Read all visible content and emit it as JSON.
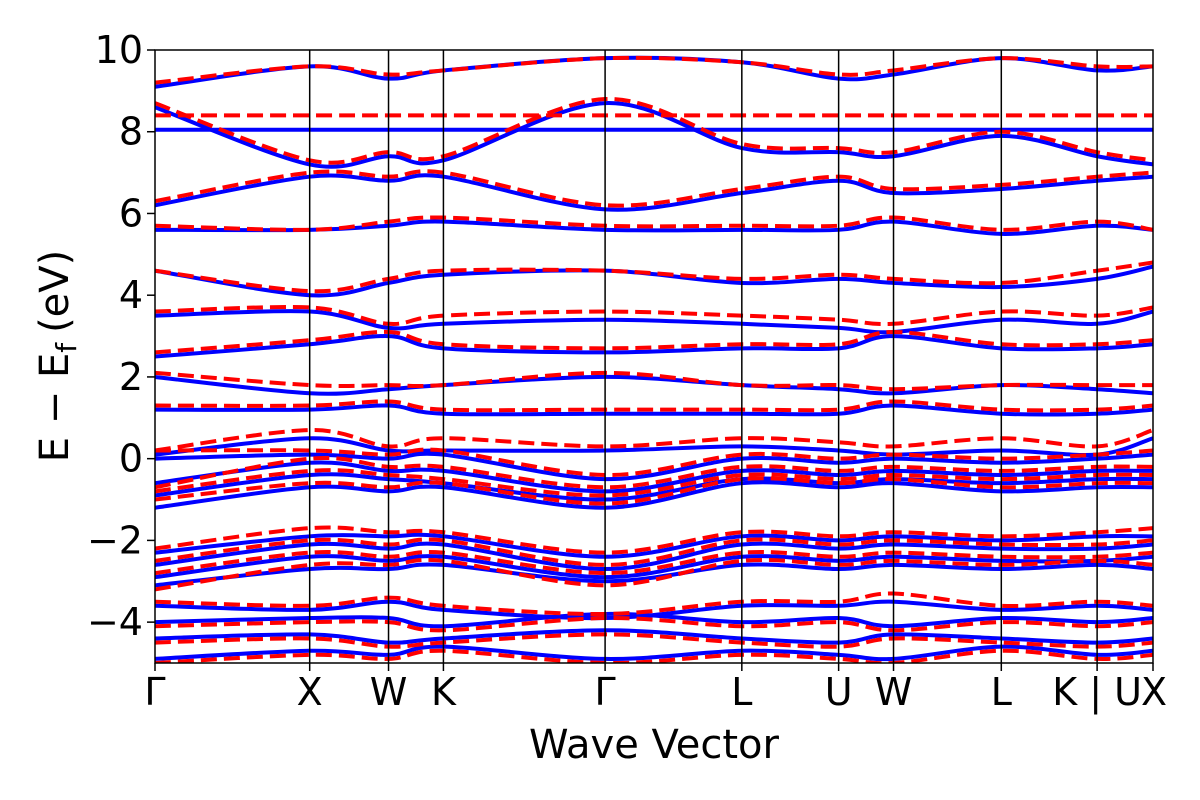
{
  "chart_data": {
    "type": "line",
    "xlabel": "Wave Vector",
    "ylabel": "E − E",
    "ylabel_subscript": "f",
    "ylabel_unit": "(eV)",
    "ylim": [
      -5,
      10
    ],
    "yticks": [
      -4,
      -2,
      0,
      2,
      4,
      6,
      8,
      10
    ],
    "ytick_labels": [
      "−4",
      "−2",
      "0",
      "2",
      "4",
      "6",
      "8",
      "10"
    ],
    "grid": false,
    "legend": "none",
    "kpath": {
      "positions": [
        0,
        0.155,
        0.234,
        0.289,
        0.451,
        0.588,
        0.685,
        0.74,
        0.848,
        0.944,
        1.0
      ],
      "labels": [
        "Γ",
        "X",
        "W",
        "K",
        "Γ",
        "L",
        "U",
        "W",
        "L",
        "K | U",
        "X"
      ]
    },
    "series": [
      {
        "style": "solid",
        "color": "#0000ff",
        "bands": [
          [
            -4.9,
            -4.7,
            -4.8,
            -4.6,
            -4.9,
            -4.7,
            -4.8,
            -4.9,
            -4.6,
            -4.8,
            -4.7
          ],
          [
            -4.4,
            -4.3,
            -4.5,
            -4.4,
            -4.2,
            -4.4,
            -4.5,
            -4.3,
            -4.4,
            -4.5,
            -4.4
          ],
          [
            -4.0,
            -3.9,
            -3.9,
            -4.1,
            -3.8,
            -4.0,
            -3.9,
            -4.1,
            -3.9,
            -4.0,
            -3.9
          ],
          [
            -3.6,
            -3.7,
            -3.5,
            -3.7,
            -3.9,
            -3.6,
            -3.6,
            -3.5,
            -3.7,
            -3.6,
            -3.7
          ],
          [
            -3.1,
            -2.7,
            -2.7,
            -2.6,
            -3.0,
            -2.6,
            -2.7,
            -2.6,
            -2.7,
            -2.6,
            -2.7
          ],
          [
            -2.9,
            -2.4,
            -2.5,
            -2.4,
            -2.9,
            -2.4,
            -2.5,
            -2.4,
            -2.5,
            -2.5,
            -2.4
          ],
          [
            -2.6,
            -2.1,
            -2.2,
            -2.1,
            -2.7,
            -2.1,
            -2.2,
            -2.1,
            -2.2,
            -2.2,
            -2.1
          ],
          [
            -2.3,
            -1.9,
            -1.9,
            -1.9,
            -2.4,
            -1.9,
            -2.0,
            -1.9,
            -2.0,
            -1.9,
            -1.9
          ],
          [
            -1.2,
            -0.7,
            -0.8,
            -0.7,
            -1.2,
            -0.6,
            -0.7,
            -0.6,
            -0.8,
            -0.7,
            -0.7
          ],
          [
            -0.9,
            -0.4,
            -0.5,
            -0.6,
            -1.0,
            -0.5,
            -0.6,
            -0.5,
            -0.6,
            -0.5,
            -0.5
          ],
          [
            -0.6,
            -0.1,
            -0.3,
            -0.3,
            -0.8,
            -0.3,
            -0.4,
            -0.3,
            -0.4,
            -0.3,
            -0.3
          ],
          [
            0.0,
            0.1,
            0.0,
            0.1,
            -0.5,
            0.0,
            -0.1,
            0.0,
            -0.1,
            0.0,
            0.1
          ],
          [
            0.1,
            0.5,
            0.2,
            0.2,
            0.2,
            0.3,
            0.2,
            0.1,
            0.2,
            0.1,
            0.5
          ],
          [
            1.2,
            1.2,
            1.3,
            1.1,
            1.1,
            1.1,
            1.1,
            1.3,
            1.1,
            1.1,
            1.2
          ],
          [
            2.0,
            1.6,
            1.7,
            1.8,
            2.0,
            1.8,
            1.7,
            1.6,
            1.8,
            1.7,
            1.6
          ],
          [
            2.5,
            2.8,
            3.0,
            2.7,
            2.6,
            2.7,
            2.7,
            3.0,
            2.7,
            2.7,
            2.8
          ],
          [
            3.5,
            3.6,
            3.2,
            3.3,
            3.4,
            3.3,
            3.2,
            3.1,
            3.4,
            3.3,
            3.6
          ],
          [
            4.6,
            4.0,
            4.3,
            4.5,
            4.6,
            4.3,
            4.4,
            4.3,
            4.2,
            4.4,
            4.7
          ],
          [
            5.6,
            5.6,
            5.7,
            5.8,
            5.6,
            5.6,
            5.6,
            5.8,
            5.5,
            5.7,
            5.6
          ],
          [
            6.2,
            6.9,
            6.8,
            6.9,
            6.1,
            6.5,
            6.8,
            6.5,
            6.6,
            6.8,
            6.9
          ],
          [
            8.05,
            8.05,
            8.05,
            8.05,
            8.05,
            8.05,
            8.05,
            8.05,
            8.05,
            8.05,
            8.05
          ],
          [
            8.6,
            7.2,
            7.4,
            7.3,
            8.7,
            7.6,
            7.5,
            7.4,
            7.9,
            7.4,
            7.2
          ],
          [
            9.1,
            9.6,
            9.3,
            9.5,
            9.8,
            9.7,
            9.3,
            9.4,
            9.8,
            9.5,
            9.6
          ]
        ]
      },
      {
        "style": "dashed",
        "color": "#ff0000",
        "bands": [
          [
            -5.0,
            -4.8,
            -4.9,
            -4.7,
            -5.0,
            -4.8,
            -4.9,
            -5.0,
            -4.7,
            -4.9,
            -4.8
          ],
          [
            -4.5,
            -4.4,
            -4.6,
            -4.5,
            -4.3,
            -4.5,
            -4.6,
            -4.4,
            -4.5,
            -4.6,
            -4.5
          ],
          [
            -4.1,
            -4.0,
            -4.0,
            -4.2,
            -3.9,
            -4.1,
            -4.0,
            -4.2,
            -4.0,
            -4.1,
            -4.0
          ],
          [
            -3.5,
            -3.6,
            -3.4,
            -3.6,
            -3.8,
            -3.5,
            -3.5,
            -3.3,
            -3.6,
            -3.5,
            -3.6
          ],
          [
            -3.2,
            -2.6,
            -2.6,
            -2.5,
            -3.1,
            -2.5,
            -2.6,
            -2.5,
            -2.6,
            -2.5,
            -2.6
          ],
          [
            -2.8,
            -2.3,
            -2.4,
            -2.3,
            -2.8,
            -2.3,
            -2.4,
            -2.3,
            -2.4,
            -2.4,
            -2.3
          ],
          [
            -2.5,
            -2.0,
            -2.1,
            -2.0,
            -2.6,
            -2.0,
            -2.1,
            -2.0,
            -2.1,
            -2.1,
            -2.0
          ],
          [
            -2.2,
            -1.7,
            -1.8,
            -1.8,
            -2.3,
            -1.8,
            -1.9,
            -1.8,
            -1.9,
            -1.8,
            -1.7
          ],
          [
            -1.0,
            -0.6,
            -0.7,
            -0.6,
            -1.1,
            -0.5,
            -0.6,
            -0.5,
            -0.7,
            -0.6,
            -0.6
          ],
          [
            -0.8,
            -0.3,
            -0.4,
            -0.5,
            -0.9,
            -0.4,
            -0.5,
            -0.4,
            -0.5,
            -0.4,
            -0.4
          ],
          [
            -0.7,
            0.0,
            -0.2,
            -0.2,
            -0.7,
            -0.2,
            -0.3,
            -0.2,
            -0.3,
            -0.2,
            -0.2
          ],
          [
            0.2,
            0.2,
            0.1,
            0.2,
            -0.4,
            0.1,
            0.0,
            0.1,
            0.0,
            0.1,
            0.2
          ],
          [
            0.2,
            0.7,
            0.3,
            0.5,
            0.3,
            0.5,
            0.4,
            0.3,
            0.5,
            0.3,
            0.7
          ],
          [
            1.3,
            1.3,
            1.4,
            1.2,
            1.2,
            1.2,
            1.2,
            1.4,
            1.2,
            1.2,
            1.3
          ],
          [
            2.1,
            1.8,
            1.8,
            1.8,
            2.1,
            1.8,
            1.8,
            1.7,
            1.8,
            1.8,
            1.8
          ],
          [
            2.6,
            2.9,
            3.1,
            2.8,
            2.7,
            2.8,
            2.8,
            3.1,
            2.8,
            2.8,
            2.9
          ],
          [
            3.6,
            3.7,
            3.3,
            3.5,
            3.6,
            3.5,
            3.4,
            3.3,
            3.6,
            3.5,
            3.7
          ],
          [
            4.6,
            4.1,
            4.4,
            4.6,
            4.6,
            4.4,
            4.5,
            4.4,
            4.3,
            4.6,
            4.8
          ],
          [
            5.7,
            5.6,
            5.8,
            5.9,
            5.7,
            5.7,
            5.7,
            5.9,
            5.6,
            5.8,
            5.6
          ],
          [
            6.3,
            7.0,
            6.9,
            7.0,
            6.2,
            6.6,
            6.9,
            6.6,
            6.7,
            6.9,
            7.0
          ],
          [
            8.4,
            8.4,
            8.4,
            8.4,
            8.4,
            8.4,
            8.4,
            8.4,
            8.4,
            8.4,
            8.4
          ],
          [
            8.7,
            7.3,
            7.5,
            7.4,
            8.8,
            7.7,
            7.6,
            7.5,
            8.0,
            7.5,
            7.3
          ],
          [
            9.2,
            9.6,
            9.4,
            9.5,
            9.8,
            9.7,
            9.4,
            9.5,
            9.8,
            9.6,
            9.6
          ]
        ]
      }
    ]
  }
}
